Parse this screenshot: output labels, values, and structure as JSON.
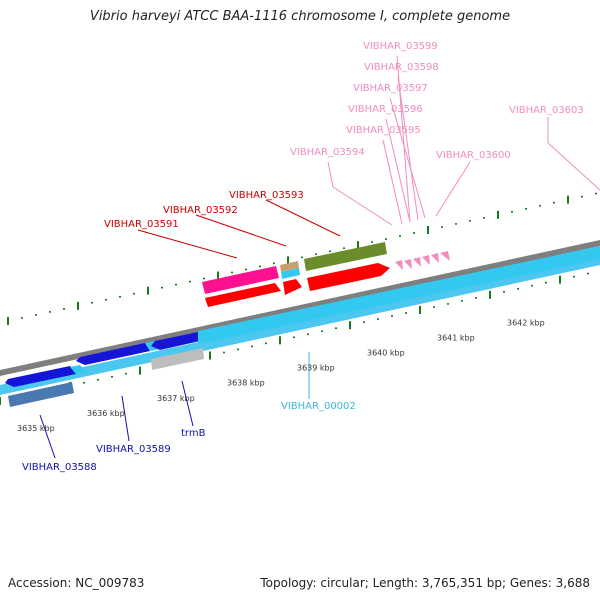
{
  "title": "Vibrio harveyi ATCC BAA-1116 chromosome I, complete genome",
  "footer": {
    "accession": "Accession: NC_009783",
    "topology": "Topology: circular; Length: 3,765,351 bp; Genes: 3,688"
  },
  "scale_labels": [
    "3635 kbp",
    "3636 kbp",
    "3637 kbp",
    "3638 kbp",
    "3639 kbp",
    "3640 kbp",
    "3641 kbp",
    "3642 kbp"
  ],
  "colors": {
    "backbone_dark": "#808080",
    "backbone_cyan": "#4cc8f0",
    "tick": "#1a7a1a",
    "label_dark_red": "#cc0000",
    "label_pink": "#f08cc0",
    "label_blue": "#1010b0",
    "label_cyan": "#3ab8e0"
  },
  "labels": {
    "VIBHAR_03599": "VIBHAR_03599",
    "VIBHAR_03598": "VIBHAR_03598",
    "VIBHAR_03597": "VIBHAR_03597",
    "VIBHAR_03596": "VIBHAR_03596",
    "VIBHAR_03595": "VIBHAR_03595",
    "VIBHAR_03594": "VIBHAR_03594",
    "VIBHAR_03600": "VIBHAR_03600",
    "VIBHAR_03603": "VIBHAR_03603",
    "VIBHAR_03593": "VIBHAR_03593",
    "VIBHAR_03592": "VIBHAR_03592",
    "VIBHAR_03591": "VIBHAR_03591",
    "VIBHAR_00002": "VIBHAR_00002",
    "trmB": "trmB",
    "VIBHAR_03589": "VIBHAR_03589",
    "VIBHAR_03588": "VIBHAR_03588"
  }
}
